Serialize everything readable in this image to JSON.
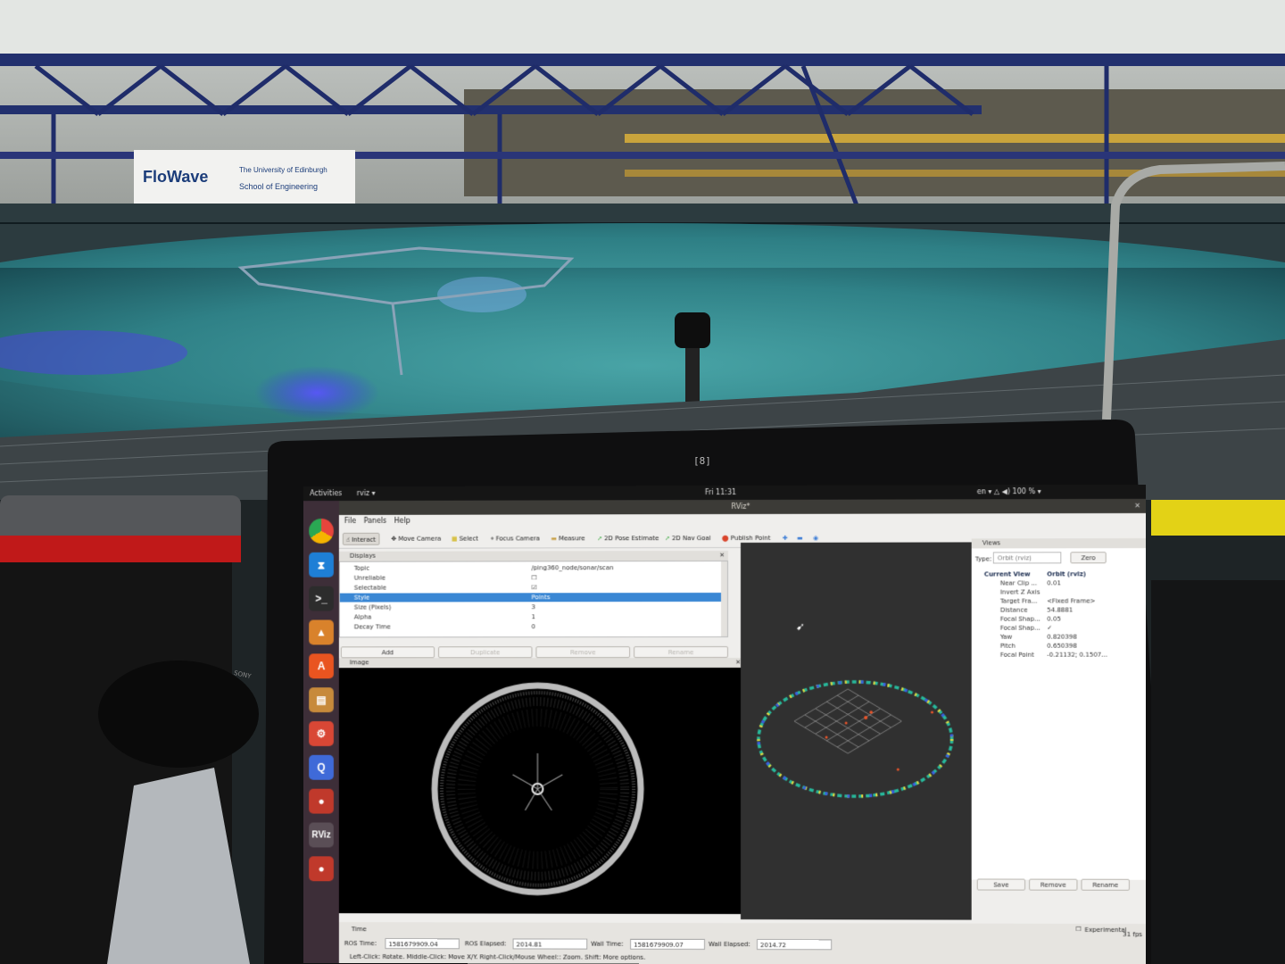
{
  "scene": {
    "banner": {
      "brand": "FloWave",
      "subtitle_line1": "The University of Edinburgh",
      "subtitle_line2": "School of Engineering"
    },
    "bezel_badge": "[8]",
    "camera_brand": "SONY"
  },
  "desktop": {
    "activities_label": "Activities",
    "app_menu_label": "rviz ▾",
    "clock": "Fri 11:31",
    "indicators": "en ▾   △  ◀)  100 % ▾",
    "launcher_apps": [
      {
        "name": "chrome-icon",
        "label": "",
        "color": "#e8453c"
      },
      {
        "name": "vscode-icon",
        "label": "⧗",
        "color": "#1e7fd6"
      },
      {
        "name": "terminal-icon",
        "label": ">_",
        "color": "#2c2c2c"
      },
      {
        "name": "matlab-icon",
        "label": "▲",
        "color": "#d9822b"
      },
      {
        "name": "software-center-icon",
        "label": "A",
        "color": "#e95420"
      },
      {
        "name": "files-icon",
        "label": "▤",
        "color": "#c78a3b"
      },
      {
        "name": "settings-icon",
        "label": "⚙",
        "color": "#d94735"
      },
      {
        "name": "qtcreator-icon",
        "label": "Q",
        "color": "#3f6ad8"
      },
      {
        "name": "record-icon",
        "label": "●",
        "color": "#c0392b"
      },
      {
        "name": "rviz-icon",
        "label": "RViz",
        "color": "#5a4e56"
      },
      {
        "name": "record-icon-2",
        "label": "●",
        "color": "#c0392b"
      }
    ]
  },
  "rviz": {
    "window_title": "RViz*",
    "menu": [
      "File",
      "Panels",
      "Help"
    ],
    "toolbar": [
      "Interact",
      "Move Camera",
      "Select",
      "Focus Camera",
      "Measure",
      "2D Pose Estimate",
      "2D Nav Goal",
      "Publish Point"
    ],
    "displays": {
      "title": "Displays",
      "rows": [
        {
          "key": "Topic",
          "value": "/ping360_node/sonar/scan"
        },
        {
          "key": "Unreliable",
          "value": "☐"
        },
        {
          "key": "Selectable",
          "value": "☑"
        },
        {
          "key": "Style",
          "value": "Points"
        },
        {
          "key": "Size (Pixels)",
          "value": "3"
        },
        {
          "key": "Alpha",
          "value": "1"
        },
        {
          "key": "Decay Time",
          "value": "0"
        }
      ],
      "selected_index": 3,
      "buttons": [
        "Add",
        "Duplicate",
        "Remove",
        "Rename"
      ]
    },
    "image_panel_title": "Image",
    "views": {
      "title": "Views",
      "type_label": "Type:",
      "type_value": "Orbit (rviz)",
      "zero_button": "Zero",
      "current_view_label": "Current View",
      "current_view_value": "Orbit (rviz)",
      "rows": [
        {
          "key": "Near Clip ...",
          "value": "0.01"
        },
        {
          "key": "Invert Z Axis",
          "value": ""
        },
        {
          "key": "Target Fra...",
          "value": "<Fixed Frame>"
        },
        {
          "key": "Distance",
          "value": "54.8881"
        },
        {
          "key": "Focal Shap...",
          "value": "0.05"
        },
        {
          "key": "Focal Shap...",
          "value": "✓"
        },
        {
          "key": "Yaw",
          "value": "0.820398"
        },
        {
          "key": "Pitch",
          "value": "0.650398"
        },
        {
          "key": "Focal Point",
          "value": "-0.21132; 0.1507..."
        }
      ],
      "buttons": [
        "Save",
        "Remove",
        "Rename"
      ]
    },
    "time": {
      "title": "Time",
      "experimental_label": "Experimental",
      "ros_time_label": "ROS Time:",
      "ros_time": "1581679909.04",
      "ros_elapsed_label": "ROS Elapsed:",
      "ros_elapsed": "2014.81",
      "wall_time_label": "Wall Time:",
      "wall_time": "1581679909.07",
      "wall_elapsed_label": "Wall Elapsed:",
      "wall_elapsed": "2014.72",
      "fps": "31 fps",
      "hint": "Left-Click: Rotate. Middle-Click: Move X/Y. Right-Click/Mouse Wheel:: Zoom. Shift: More options."
    }
  }
}
